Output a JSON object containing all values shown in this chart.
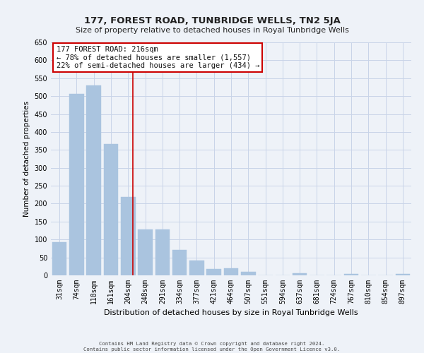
{
  "title": "177, FOREST ROAD, TUNBRIDGE WELLS, TN2 5JA",
  "subtitle": "Size of property relative to detached houses in Royal Tunbridge Wells",
  "xlabel": "Distribution of detached houses by size in Royal Tunbridge Wells",
  "ylabel": "Number of detached properties",
  "footer_line1": "Contains HM Land Registry data © Crown copyright and database right 2024.",
  "footer_line2": "Contains public sector information licensed under the Open Government Licence v3.0.",
  "bin_labels": [
    "31sqm",
    "74sqm",
    "118sqm",
    "161sqm",
    "204sqm",
    "248sqm",
    "291sqm",
    "334sqm",
    "377sqm",
    "421sqm",
    "464sqm",
    "507sqm",
    "551sqm",
    "594sqm",
    "637sqm",
    "681sqm",
    "724sqm",
    "767sqm",
    "810sqm",
    "854sqm",
    "897sqm"
  ],
  "bar_values": [
    93,
    507,
    530,
    367,
    218,
    128,
    128,
    70,
    42,
    18,
    20,
    10,
    0,
    0,
    5,
    0,
    0,
    3,
    0,
    0,
    3
  ],
  "bar_color": "#aac4df",
  "bar_edge_color": "#aac4df",
  "grid_color": "#c8d4e8",
  "ylim": [
    0,
    650
  ],
  "yticks": [
    0,
    50,
    100,
    150,
    200,
    250,
    300,
    350,
    400,
    450,
    500,
    550,
    600,
    650
  ],
  "annotation_box_text_line1": "177 FOREST ROAD: 216sqm",
  "annotation_box_text_line2": "← 78% of detached houses are smaller (1,557)",
  "annotation_box_text_line3": "22% of semi-detached houses are larger (434) →",
  "annotation_line_color": "#cc0000",
  "annotation_box_edge_color": "#cc0000",
  "annotation_box_bg": "#ffffff",
  "background_color": "#eef2f8",
  "title_fontsize": 9.5,
  "subtitle_fontsize": 8,
  "ylabel_fontsize": 7.5,
  "xlabel_fontsize": 8,
  "tick_fontsize": 7,
  "annotation_fontsize": 7.5
}
